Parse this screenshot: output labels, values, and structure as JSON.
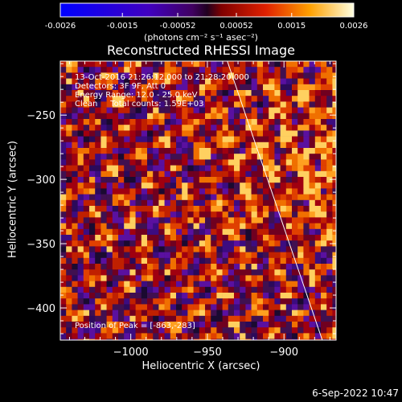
{
  "colorbar": {
    "ticks": [
      "-0.0026",
      "-0.0015",
      "-0.00052",
      "0.00052",
      "0.0015",
      "0.0026"
    ],
    "tick_values": [
      -0.0026,
      -0.0015,
      -0.00052,
      0.00052,
      0.0015,
      0.0026
    ],
    "range": [
      -0.0026,
      0.0026
    ],
    "units": "(photons cm⁻² s⁻¹ asec⁻²)"
  },
  "chart_data": {
    "type": "heatmap",
    "title": "Reconstructed RHESSI Image",
    "xlabel": "Heliocentric X (arcsec)",
    "ylabel": "Heliocentric Y (arcsec)",
    "xlim": [
      -1046,
      -866
    ],
    "ylim": [
      -425,
      -208
    ],
    "x_ticks": [
      -1000,
      -950,
      -900
    ],
    "y_ticks": [
      -250,
      -300,
      -350,
      -400
    ],
    "x_tick_labels": [
      "−1000",
      "−950",
      "−900"
    ],
    "y_tick_labels": [
      "−250",
      "−300",
      "−350",
      "−400"
    ],
    "limb_line": [
      [
        -937,
        -208
      ],
      [
        -875,
        -425
      ]
    ],
    "peak": [
      -863,
      -283
    ],
    "colormap": "RHESSI thermal"
  },
  "annotations": {
    "line1": "13-Oct-2016 21:26:12.000 to 21:28:20.000",
    "line2": "Detectors: 3F 9F, Att 0",
    "line3": "Energy Range: 12.0 - 25.0 keV",
    "line4": "Clean     Total counts: 1.59E+03",
    "peak_label": "Position of Peak = [-863,-283]"
  },
  "footer": {
    "date": "6-Sep-2022 10:47"
  }
}
